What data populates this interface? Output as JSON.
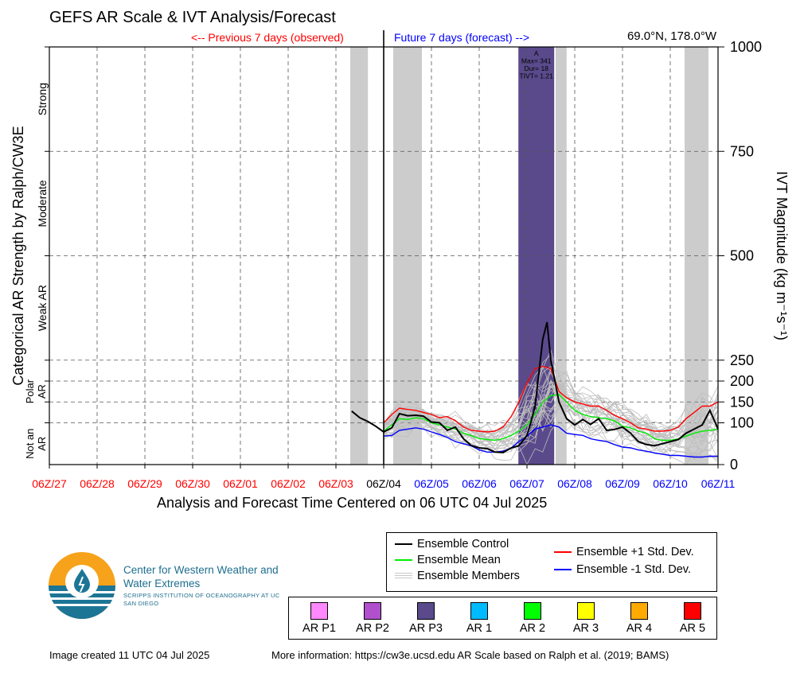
{
  "header": {
    "title": "GEFS AR Scale & IVT Analysis/Forecast",
    "previous_label": "<-- Previous 7 days (observed)",
    "future_label": "Future 7 days (forecast) -->",
    "location": "69.0°N, 178.0°W"
  },
  "chart_data": {
    "type": "line",
    "xlabel": "Analysis and Forecast Time Centered on 06 UTC 04 Jul 2025",
    "ylabel_left": "Categorical AR Strength by Ralph/CW3E",
    "ylabel_right": "IVT Magnitude (kg m⁻¹s⁻¹)",
    "x_unit": "days",
    "xlim": [
      0,
      14
    ],
    "x_tick_labels": [
      {
        "x": 0,
        "label": "06Z/27",
        "color": "#ff0000"
      },
      {
        "x": 1,
        "label": "06Z/28",
        "color": "#ff0000"
      },
      {
        "x": 2,
        "label": "06Z/29",
        "color": "#ff0000"
      },
      {
        "x": 3,
        "label": "06Z/30",
        "color": "#ff0000"
      },
      {
        "x": 4,
        "label": "06Z/01",
        "color": "#ff0000"
      },
      {
        "x": 5,
        "label": "06Z/02",
        "color": "#ff0000"
      },
      {
        "x": 6,
        "label": "06Z/03",
        "color": "#ff0000"
      },
      {
        "x": 7,
        "label": "06Z/04",
        "color": "#000000"
      },
      {
        "x": 8,
        "label": "06Z/05",
        "color": "#0000ff"
      },
      {
        "x": 9,
        "label": "06Z/06",
        "color": "#0000ff"
      },
      {
        "x": 10,
        "label": "06Z/07",
        "color": "#0000ff"
      },
      {
        "x": 11,
        "label": "06Z/08",
        "color": "#0000ff"
      },
      {
        "x": 12,
        "label": "06Z/09",
        "color": "#0000ff"
      },
      {
        "x": 13,
        "label": "06Z/10",
        "color": "#0000ff"
      },
      {
        "x": 14,
        "label": "06Z/11",
        "color": "#0000ff"
      }
    ],
    "ylim": [
      0,
      1000
    ],
    "y_ticks": [
      0,
      100,
      150,
      200,
      250,
      500,
      750,
      1000
    ],
    "grid": true,
    "current_time_x": 7,
    "categories_left": [
      {
        "label": "Not an AR",
        "y_min": 0,
        "y_max": 100
      },
      {
        "label": "Polar AR",
        "y_min": 100,
        "y_max": 250
      },
      {
        "label": "Weak AR",
        "y_min": 250,
        "y_max": 500
      },
      {
        "label": "Moderate",
        "y_min": 500,
        "y_max": 750
      },
      {
        "label": "Strong",
        "y_min": 750,
        "y_max": 1000
      }
    ],
    "gray_spans": [
      [
        6.3,
        6.67
      ],
      [
        7.2,
        7.8
      ],
      [
        10.37,
        10.5
      ],
      [
        10.6,
        10.83
      ],
      [
        13.3,
        13.8
      ]
    ],
    "ar_event": {
      "x_start": 9.82,
      "x_end": 10.57,
      "color": "#5a4a8c",
      "label_lines": [
        "A",
        "Max= 341",
        "Dur= 18",
        "TIVT= 1.21"
      ]
    },
    "series": [
      {
        "name": "Ensemble Control",
        "color": "#000000",
        "x": [
          6.33,
          6.5,
          6.67,
          6.83,
          7,
          7.17,
          7.33,
          7.5,
          7.67,
          7.83,
          8,
          8.17,
          8.33,
          8.5,
          8.67,
          8.83,
          9,
          9.17,
          9.33,
          9.5,
          9.67,
          9.83,
          10,
          10.08,
          10.17,
          10.25,
          10.33,
          10.42,
          10.5,
          10.67,
          10.83,
          11,
          11.17,
          11.33,
          11.5,
          11.67,
          11.83,
          12,
          12.17,
          12.33,
          12.5,
          12.67,
          12.83,
          13,
          13.17,
          13.33,
          13.5,
          13.67,
          13.83,
          14
        ],
        "y": [
          128,
          112,
          103,
          92,
          78,
          88,
          122,
          117,
          118,
          116,
          102,
          100,
          82,
          90,
          62,
          46,
          40,
          38,
          30,
          29,
          40,
          45,
          70,
          100,
          140,
          220,
          300,
          341,
          250,
          150,
          110,
          95,
          108,
          96,
          110,
          82,
          84,
          90,
          75,
          55,
          48,
          45,
          50,
          55,
          60,
          75,
          85,
          95,
          130,
          85
        ]
      },
      {
        "name": "Ensemble Mean",
        "color": "#00ee00",
        "x": [
          7,
          7.17,
          7.33,
          7.5,
          7.67,
          7.83,
          8,
          8.17,
          8.33,
          8.5,
          8.67,
          8.83,
          9,
          9.17,
          9.33,
          9.5,
          9.67,
          9.83,
          10,
          10.17,
          10.33,
          10.5,
          10.67,
          10.83,
          11,
          11.17,
          11.33,
          11.5,
          11.67,
          11.83,
          12,
          12.17,
          12.33,
          12.5,
          12.67,
          12.83,
          13,
          13.17,
          13.33,
          13.5,
          13.67,
          13.83,
          14
        ],
        "y": [
          80,
          95,
          110,
          108,
          112,
          110,
          100,
          95,
          90,
          85,
          75,
          70,
          62,
          60,
          58,
          62,
          70,
          80,
          95,
          120,
          150,
          165,
          168,
          150,
          130,
          120,
          115,
          112,
          110,
          105,
          92,
          88,
          80,
          75,
          62,
          58,
          58,
          62,
          68,
          75,
          80,
          82,
          85
        ]
      },
      {
        "name": "Ensemble +1 Std. Dev.",
        "color": "#ff0000",
        "x": [
          7,
          7.17,
          7.33,
          7.5,
          7.67,
          7.83,
          8,
          8.17,
          8.33,
          8.5,
          8.67,
          8.83,
          9,
          9.17,
          9.33,
          9.5,
          9.67,
          9.83,
          10,
          10.17,
          10.33,
          10.5,
          10.67,
          10.83,
          11,
          11.17,
          11.33,
          11.5,
          11.67,
          11.83,
          12,
          12.17,
          12.33,
          12.5,
          12.67,
          12.83,
          13,
          13.17,
          13.33,
          13.5,
          13.67,
          13.83,
          14
        ],
        "y": [
          100,
          120,
          135,
          132,
          130,
          125,
          120,
          112,
          115,
          105,
          90,
          82,
          80,
          78,
          80,
          90,
          115,
          150,
          195,
          230,
          235,
          230,
          175,
          160,
          150,
          145,
          140,
          140,
          130,
          118,
          110,
          100,
          88,
          85,
          80,
          80,
          82,
          90,
          110,
          125,
          140,
          140,
          150
        ]
      },
      {
        "name": "Ensemble -1 Std. Dev.",
        "color": "#0000ff",
        "x": [
          7,
          7.17,
          7.33,
          7.5,
          7.67,
          7.83,
          8,
          8.17,
          8.33,
          8.5,
          8.67,
          8.83,
          9,
          9.17,
          9.33,
          9.5,
          9.67,
          9.83,
          10,
          10.17,
          10.33,
          10.5,
          10.67,
          10.83,
          11,
          11.17,
          11.33,
          11.5,
          11.67,
          11.83,
          12,
          12.17,
          12.33,
          12.5,
          12.67,
          12.83,
          13,
          13.17,
          13.33,
          13.5,
          13.67,
          13.83,
          14
        ],
        "y": [
          68,
          70,
          82,
          85,
          88,
          85,
          78,
          72,
          65,
          55,
          50,
          45,
          35,
          30,
          30,
          32,
          40,
          55,
          68,
          85,
          90,
          95,
          90,
          75,
          72,
          70,
          62,
          58,
          55,
          48,
          42,
          40,
          35,
          32,
          28,
          25,
          22,
          22,
          20,
          18,
          18,
          20,
          20
        ]
      }
    ],
    "members_label": "Ensemble Members",
    "ensemble_members_count": 30
  },
  "legend_lines": {
    "control": "Ensemble Control",
    "mean": "Ensemble Mean",
    "members": "Ensemble Members",
    "plus_sd": "Ensemble +1 Std. Dev.",
    "minus_sd": "Ensemble -1 Std. Dev."
  },
  "ar_categories": [
    {
      "label": "AR P1",
      "color": "#ff88ff"
    },
    {
      "label": "AR P2",
      "color": "#b050cc"
    },
    {
      "label": "AR P3",
      "color": "#5a4a8c"
    },
    {
      "label": "AR 1",
      "color": "#00bbff"
    },
    {
      "label": "AR 2",
      "color": "#00ff00"
    },
    {
      "label": "AR 3",
      "color": "#ffff00"
    },
    {
      "label": "AR 4",
      "color": "#ffaa00"
    },
    {
      "label": "AR 5",
      "color": "#ff0000"
    }
  ],
  "logo": {
    "name_line": "Center for Western Weather and Water Extremes",
    "sub_line": "SCRIPPS INSTITUTION OF OCEANOGRAPHY AT UC SAN DIEGO"
  },
  "footer": {
    "created": "Image created 11 UTC 04 Jul 2025",
    "more_info": "More information: https://cw3e.ucsd.edu AR Scale based on Ralph et al. (2019; BAMS)"
  }
}
